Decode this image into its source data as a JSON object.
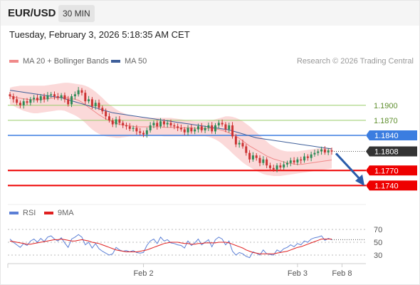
{
  "header": {
    "symbol": "EUR/USD",
    "timeframe": "30 MIN"
  },
  "datetime": "Tuesday, February 3, 2026 5:18:35 AM CET",
  "credit": "Research © 2026 Trading Central",
  "legend_main": [
    {
      "label": "MA 20 + Bollinger Bands",
      "color": "#f08a8a"
    },
    {
      "label": "MA 50",
      "color": "#3f5f9a"
    }
  ],
  "legend_rsi": [
    {
      "label": "RSI",
      "color": "#5b7fd6"
    },
    {
      "label": "9MA",
      "color": "#e02020"
    }
  ],
  "colors": {
    "up": "#2e8b57",
    "down": "#cc3333",
    "band": "#fbd9d9",
    "resistance": "#9acd6a",
    "pivot": "#3b7de0",
    "support": "#ee0000",
    "arrow": "#2a5caa"
  },
  "chart_data": [
    {
      "type": "candlestick",
      "ylim": [
        1.1705,
        1.1975
      ],
      "x_ticks": [
        {
          "label": "Feb 2",
          "index": 39
        },
        {
          "label": "Feb 3",
          "index": 84
        },
        {
          "label": "Feb 8",
          "index": 97
        }
      ],
      "levels": [
        {
          "value": 1.19,
          "label": "1.1900",
          "kind": "resistance"
        },
        {
          "value": 1.187,
          "label": "1.1870",
          "kind": "resistance"
        },
        {
          "value": 1.184,
          "label": "1.1840",
          "kind": "pivot"
        },
        {
          "value": 1.1808,
          "label": "1.1808",
          "kind": "last"
        },
        {
          "value": 1.177,
          "label": "1.1770",
          "kind": "support"
        },
        {
          "value": 1.174,
          "label": "1.1740",
          "kind": "support"
        }
      ],
      "close": [
        1.1918,
        1.1912,
        1.1905,
        1.19,
        1.1908,
        1.1905,
        1.1912,
        1.1915,
        1.191,
        1.1918,
        1.1912,
        1.192,
        1.1922,
        1.1918,
        1.1915,
        1.192,
        1.1912,
        1.1902,
        1.1918,
        1.1922,
        1.193,
        1.1925,
        1.1908,
        1.1912,
        1.1898,
        1.1905,
        1.1895,
        1.1888,
        1.1878,
        1.187,
        1.1862,
        1.1872,
        1.1865,
        1.186,
        1.1858,
        1.1853,
        1.1855,
        1.1848,
        1.1845,
        1.1842,
        1.185,
        1.186,
        1.1865,
        1.1858,
        1.1868,
        1.1862,
        1.1865,
        1.186,
        1.1858,
        1.1855,
        1.1852,
        1.1846,
        1.1855,
        1.1848,
        1.1852,
        1.1858,
        1.185,
        1.1855,
        1.186,
        1.1848,
        1.186,
        1.1865,
        1.1862,
        1.1852,
        1.186,
        1.1838,
        1.1822,
        1.1825,
        1.1818,
        1.1805,
        1.1792,
        1.18,
        1.1795,
        1.1785,
        1.1792,
        1.178,
        1.1775,
        1.1772,
        1.178,
        1.1776,
        1.1782,
        1.1785,
        1.179,
        1.1786,
        1.1792,
        1.179,
        1.1798,
        1.1795,
        1.1802,
        1.1805,
        1.1808,
        1.1812,
        1.1806,
        1.181,
        1.1808
      ],
      "ma20": [
        1.1918,
        1.1917,
        1.1915,
        1.1914,
        1.1913,
        1.1912,
        1.1911,
        1.1911,
        1.1911,
        1.1912,
        1.1912,
        1.1913,
        1.1914,
        1.1915,
        1.1915,
        1.1916,
        1.1916,
        1.1914,
        1.1913,
        1.1912,
        1.191,
        1.1906,
        1.1901,
        1.1896,
        1.1891,
        1.1886,
        1.1881,
        1.1877,
        1.1873,
        1.187,
        1.1867,
        1.1864,
        1.1862,
        1.1861,
        1.186,
        1.1859,
        1.1858,
        1.1857,
        1.1857,
        1.1857,
        1.1857,
        1.1857,
        1.1857,
        1.1857,
        1.1857,
        1.1856,
        1.1856,
        1.1856,
        1.1856,
        1.1855,
        1.1855,
        1.1855,
        1.1855,
        1.1855,
        1.1854,
        1.1854,
        1.1854,
        1.1854,
        1.1854,
        1.1854,
        1.1853,
        1.1852,
        1.185,
        1.1848,
        1.1845,
        1.1842,
        1.1838,
        1.1834,
        1.1829,
        1.1824,
        1.1819,
        1.1815,
        1.1811,
        1.1807,
        1.1803,
        1.1799,
        1.1796,
        1.1793,
        1.1791,
        1.1789,
        1.1787,
        1.1785,
        1.1784,
        1.1783,
        1.1782,
        1.1782,
        1.1783,
        1.1784,
        1.1785,
        1.1786,
        1.1787,
        1.1788,
        1.1789,
        1.179,
        1.1791
      ],
      "ma50": [
        1.193,
        1.1929,
        1.1928,
        1.1927,
        1.1926,
        1.1925,
        1.1924,
        1.1923,
        1.1922,
        1.1921,
        1.192,
        1.1919,
        1.1918,
        1.1917,
        1.1916,
        1.1915,
        1.1913,
        1.1911,
        1.1909,
        1.1907,
        1.1905,
        1.1903,
        1.1901,
        1.1899,
        1.1897,
        1.1895,
        1.1893,
        1.1891,
        1.1889,
        1.1887,
        1.1885,
        1.1884,
        1.1883,
        1.1882,
        1.1881,
        1.188,
        1.1879,
        1.1878,
        1.1877,
        1.1876,
        1.1875,
        1.1874,
        1.1873,
        1.1872,
        1.1871,
        1.187,
        1.1869,
        1.1868,
        1.1867,
        1.1866,
        1.1865,
        1.1864,
        1.1863,
        1.1862,
        1.1861,
        1.186,
        1.1859,
        1.1858,
        1.1857,
        1.1856,
        1.1855,
        1.1854,
        1.1853,
        1.1852,
        1.1851,
        1.1849,
        1.1847,
        1.1845,
        1.1843,
        1.1841,
        1.1839,
        1.1837,
        1.1835,
        1.1834,
        1.1833,
        1.1832,
        1.1831,
        1.183,
        1.1829,
        1.1828,
        1.1827,
        1.1826,
        1.1825,
        1.1824,
        1.1823,
        1.1822,
        1.1821,
        1.182,
        1.1819,
        1.1818,
        1.1817,
        1.1816,
        1.1815,
        1.1814,
        1.1813
      ],
      "band_upper": [
        1.1935,
        1.1937,
        1.1938,
        1.1939,
        1.1939,
        1.1939,
        1.1939,
        1.1939,
        1.1939,
        1.1939,
        1.1939,
        1.194,
        1.1941,
        1.1942,
        1.1943,
        1.1944,
        1.1945,
        1.1945,
        1.1944,
        1.1943,
        1.1942,
        1.1941,
        1.1939,
        1.1936,
        1.1932,
        1.1927,
        1.1921,
        1.1915,
        1.1908,
        1.1902,
        1.1897,
        1.1892,
        1.1888,
        1.1885,
        1.1882,
        1.188,
        1.1878,
        1.1877,
        1.1876,
        1.1875,
        1.1875,
        1.1875,
        1.1875,
        1.1875,
        1.1875,
        1.1875,
        1.1875,
        1.1875,
        1.1874,
        1.1873,
        1.1872,
        1.1871,
        1.187,
        1.1869,
        1.1868,
        1.1868,
        1.1868,
        1.1868,
        1.1869,
        1.187,
        1.1872,
        1.1874,
        1.1876,
        1.1878,
        1.1878,
        1.1877,
        1.1875,
        1.1872,
        1.1868,
        1.1863,
        1.1858,
        1.1852,
        1.1846,
        1.184,
        1.1834,
        1.1828,
        1.1822,
        1.1818,
        1.1814,
        1.1811,
        1.1809,
        1.1808,
        1.1808,
        1.1808,
        1.1808,
        1.1809,
        1.181,
        1.1811,
        1.1812,
        1.1813,
        1.1814,
        1.1815,
        1.1815,
        1.1815,
        1.1815
      ],
      "band_lower": [
        1.1902,
        1.1899,
        1.1895,
        1.1892,
        1.1889,
        1.1887,
        1.1885,
        1.1884,
        1.1884,
        1.1885,
        1.1886,
        1.1887,
        1.1888,
        1.1889,
        1.189,
        1.189,
        1.1889,
        1.1886,
        1.1883,
        1.188,
        1.1876,
        1.1871,
        1.1865,
        1.1858,
        1.1852,
        1.1847,
        1.1843,
        1.184,
        1.1838,
        1.1837,
        1.1836,
        1.1835,
        1.1835,
        1.1836,
        1.1837,
        1.1838,
        1.1838,
        1.1838,
        1.1838,
        1.1838,
        1.1838,
        1.1839,
        1.1839,
        1.1839,
        1.1839,
        1.1838,
        1.1838,
        1.1838,
        1.1838,
        1.1838,
        1.1838,
        1.1838,
        1.1838,
        1.1838,
        1.1838,
        1.1838,
        1.1838,
        1.1838,
        1.1837,
        1.1835,
        1.1832,
        1.1828,
        1.1823,
        1.1817,
        1.1811,
        1.1804,
        1.1798,
        1.1792,
        1.1786,
        1.1781,
        1.1777,
        1.1773,
        1.1769,
        1.1766,
        1.1763,
        1.1761,
        1.176,
        1.1759,
        1.1759,
        1.1759,
        1.176,
        1.1761,
        1.1762,
        1.1763,
        1.1764,
        1.1765,
        1.1766,
        1.1767,
        1.1768,
        1.1769,
        1.177,
        1.1771,
        1.1772,
        1.1773,
        1.1774
      ]
    },
    {
      "type": "line",
      "ylim": [
        20,
        80
      ],
      "y_ticks": [
        70,
        50,
        30
      ],
      "series": [
        {
          "name": "RSI",
          "values": [
            55,
            50,
            46,
            42,
            48,
            45,
            52,
            55,
            50,
            56,
            51,
            58,
            60,
            55,
            52,
            57,
            49,
            42,
            55,
            58,
            62,
            58,
            46,
            50,
            41,
            48,
            40,
            36,
            33,
            30,
            32,
            42,
            38,
            36,
            37,
            35,
            37,
            34,
            33,
            34,
            45,
            52,
            55,
            48,
            58,
            52,
            54,
            49,
            48,
            46,
            45,
            41,
            52,
            45,
            49,
            55,
            46,
            50,
            54,
            43,
            54,
            58,
            55,
            46,
            52,
            36,
            30,
            34,
            32,
            28,
            26,
            35,
            33,
            30,
            38,
            32,
            31,
            30,
            38,
            35,
            40,
            42,
            46,
            43,
            48,
            46,
            52,
            50,
            55,
            57,
            58,
            60,
            53,
            56,
            54
          ]
        },
        {
          "name": "9MA",
          "values": [
            52,
            51,
            50,
            49,
            48,
            47,
            47,
            48,
            49,
            50,
            51,
            52,
            53,
            54,
            54,
            55,
            54,
            53,
            52,
            52,
            53,
            54,
            53,
            52,
            50,
            49,
            48,
            46,
            44,
            42,
            40,
            38,
            37,
            36,
            35,
            35,
            35,
            35,
            36,
            37,
            38,
            40,
            42,
            44,
            46,
            48,
            49,
            50,
            50,
            50,
            49,
            48,
            48,
            47,
            47,
            48,
            48,
            49,
            49,
            49,
            49,
            50,
            50,
            50,
            49,
            47,
            45,
            43,
            41,
            38,
            36,
            34,
            33,
            32,
            32,
            32,
            32,
            32,
            33,
            34,
            35,
            36,
            38,
            40,
            42,
            43,
            45,
            47,
            49,
            51,
            53,
            55,
            55,
            55,
            55
          ]
        }
      ]
    }
  ]
}
